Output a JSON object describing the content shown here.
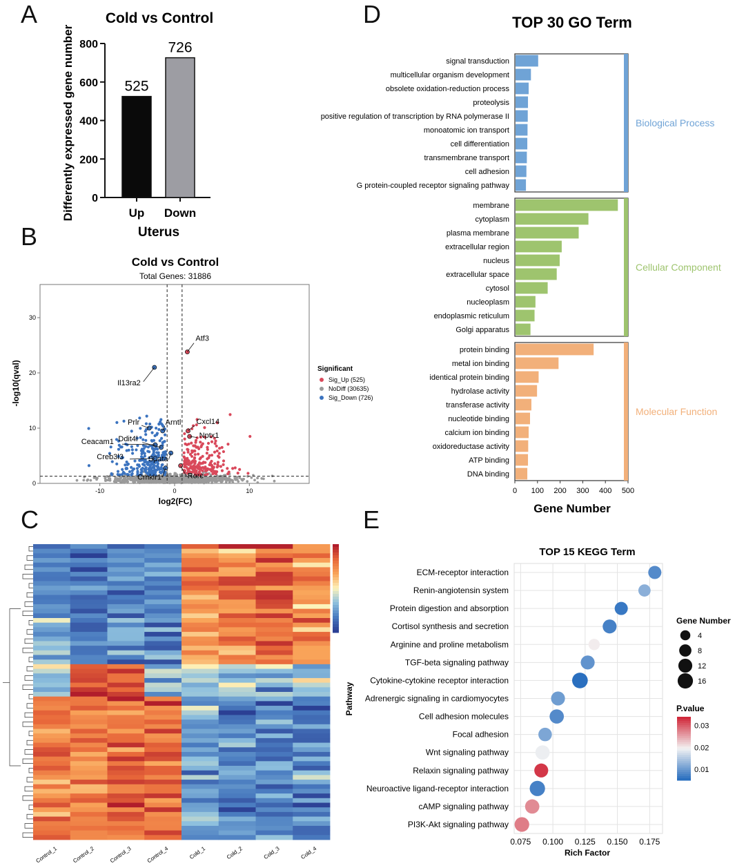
{
  "panel_letters": [
    "A",
    "B",
    "C",
    "D",
    "E"
  ],
  "chart_data": [
    {
      "id": "A",
      "type": "bar",
      "title": "Cold vs Control",
      "xlabel": "Uterus",
      "ylabel": "Differently expressed gene number",
      "categories": [
        "Up",
        "Down"
      ],
      "values": [
        525,
        726
      ],
      "value_labels": [
        "525",
        "726"
      ],
      "colors": [
        "#0a0a0a",
        "#9d9da3"
      ],
      "ylim": [
        0,
        800
      ],
      "yticks": [
        0,
        200,
        400,
        600,
        800
      ],
      "ytick_labels": [
        "0",
        "200",
        "400",
        "600",
        "800"
      ]
    },
    {
      "id": "B",
      "type": "scatter",
      "title": "Cold vs Control",
      "subtitle": "Total Genes: 31886",
      "xlabel": "log2(FC)",
      "ylabel": "-log10(qval)",
      "xlim": [
        -18,
        18
      ],
      "ylim": [
        0,
        36
      ],
      "xticks": [
        -10,
        0,
        10
      ],
      "xtick_labels": [
        "-10",
        "0",
        "10"
      ],
      "yticks": [
        0,
        10,
        20,
        30
      ],
      "ytick_labels": [
        "0",
        "10",
        "20",
        "30"
      ],
      "thresholds": {
        "fc": [
          -1,
          1
        ],
        "q": 1.3
      },
      "legend": {
        "title": "Significant",
        "entries": [
          {
            "label": "Sig_Up (525)",
            "color": "#d9495b"
          },
          {
            "label": "NoDiff (30635)",
            "color": "#9a9a9a"
          },
          {
            "label": "Sig_Down (726)",
            "color": "#3b73bf"
          }
        ]
      },
      "genes": [
        {
          "name": "Atf3",
          "x": 1.7,
          "y": 23.8
        },
        {
          "name": "Il13ra2",
          "x": -2.7,
          "y": 21.0
        },
        {
          "name": "Prlr",
          "x": -3.4,
          "y": 10.0
        },
        {
          "name": "Arntl",
          "x": -1.6,
          "y": 9.5
        },
        {
          "name": "Cxcl14",
          "x": 1.8,
          "y": 9.5
        },
        {
          "name": "Nptx1",
          "x": 2.0,
          "y": 8.5
        },
        {
          "name": "Ceacam1",
          "x": -2.6,
          "y": 7.0
        },
        {
          "name": "Ddit4l",
          "x": -1.8,
          "y": 6.5
        },
        {
          "name": "Spata",
          "x": -0.5,
          "y": 5.5
        },
        {
          "name": "Creb3l3",
          "x": -2.6,
          "y": 4.5
        },
        {
          "name": "Cmklr1",
          "x": -1.2,
          "y": 2.8
        },
        {
          "name": "Rorc",
          "x": 0.8,
          "y": 3.2
        }
      ]
    },
    {
      "id": "C",
      "type": "heatmap",
      "columns": [
        "Control_1",
        "Control_2",
        "Control_3",
        "Control_4",
        "Cold_1",
        "Cold_2",
        "Cold_3",
        "Cold_4"
      ],
      "colorscale": [
        "#2b3f94",
        "#4a7cc0",
        "#8fc1de",
        "#fdf3bb",
        "#f9a55a",
        "#e8683a",
        "#b11d2b"
      ]
    },
    {
      "id": "D",
      "type": "bar",
      "title": "TOP 30 GO Term",
      "xlabel": "Gene Number",
      "xlim": [
        0,
        500
      ],
      "xticks": [
        0,
        100,
        200,
        300,
        400,
        500
      ],
      "xtick_labels": [
        "0",
        "100",
        "200",
        "300",
        "400",
        "500"
      ],
      "groups": [
        {
          "name": "Biological Process",
          "color": "#6fa3d6",
          "terms": [
            "signal transduction",
            "multicellular organism development",
            "obsolete oxidation-reduction process",
            "proteolysis",
            "positive regulation of transcription by RNA polymerase II",
            "monoatomic ion transport",
            "cell differentiation",
            "transmembrane transport",
            "cell adhesion",
            "G protein-coupled receptor signaling pathway"
          ],
          "values": [
            100,
            68,
            58,
            55,
            54,
            53,
            52,
            50,
            48,
            46
          ]
        },
        {
          "name": "Cellular Component",
          "color": "#9ec46e",
          "terms": [
            "membrane",
            "cytoplasm",
            "plasma membrane",
            "extracellular region",
            "nucleus",
            "extracellular space",
            "cytosol",
            "nucleoplasm",
            "endoplasmic reticulum",
            "Golgi apparatus"
          ],
          "values": [
            452,
            322,
            279,
            204,
            195,
            182,
            142,
            88,
            84,
            66
          ]
        },
        {
          "name": "Molecular Function",
          "color": "#f2b07a",
          "terms": [
            "protein binding",
            "metal ion binding",
            "identical protein binding",
            "hydrolase activity",
            "transferase activity",
            "nucleotide binding",
            "calcium ion binding",
            "oxidoreductase activity",
            "ATP binding",
            "DNA binding"
          ],
          "values": [
            345,
            190,
            102,
            95,
            70,
            64,
            58,
            56,
            55,
            52
          ]
        }
      ]
    },
    {
      "id": "E",
      "type": "scatter",
      "title": "TOP 15 KEGG Term",
      "xlabel": "Rich Factor",
      "ylabel": "Pathway",
      "xlim": [
        0.07,
        0.185
      ],
      "xticks": [
        0.075,
        0.1,
        0.125,
        0.15,
        0.175
      ],
      "xtick_labels": [
        "0.075",
        "0.100",
        "0.125",
        "0.150",
        "0.175"
      ],
      "pathways": [
        {
          "name": "ECM-receptor interaction",
          "rich": 0.179,
          "genes": 10,
          "p": 0.008
        },
        {
          "name": "Renin-angiotensin system",
          "rich": 0.171,
          "genes": 8,
          "p": 0.012
        },
        {
          "name": "Protein digestion and absorption",
          "rich": 0.153,
          "genes": 10,
          "p": 0.006
        },
        {
          "name": "Cortisol synthesis and secretion",
          "rich": 0.144,
          "genes": 12,
          "p": 0.007
        },
        {
          "name": "Arginine and proline metabolism",
          "rich": 0.132,
          "genes": 6,
          "p": 0.02
        },
        {
          "name": "TGF-beta signaling pathway",
          "rich": 0.127,
          "genes": 12,
          "p": 0.009
        },
        {
          "name": "Cytokine-cytokine receptor interaction",
          "rich": 0.121,
          "genes": 17,
          "p": 0.005
        },
        {
          "name": "Adrenergic signaling in cardiomyocytes",
          "rich": 0.104,
          "genes": 12,
          "p": 0.01
        },
        {
          "name": "Cell adhesion molecules",
          "rich": 0.103,
          "genes": 13,
          "p": 0.008
        },
        {
          "name": "Focal adhesion",
          "rich": 0.094,
          "genes": 11,
          "p": 0.011
        },
        {
          "name": "Wnt signaling pathway",
          "rich": 0.092,
          "genes": 13,
          "p": 0.019
        },
        {
          "name": "Relaxin signaling pathway",
          "rich": 0.091,
          "genes": 12,
          "p": 0.033
        },
        {
          "name": "Neuroactive ligand-receptor interaction",
          "rich": 0.088,
          "genes": 16,
          "p": 0.007
        },
        {
          "name": "cAMP signaling pathway",
          "rich": 0.084,
          "genes": 13,
          "p": 0.027
        },
        {
          "name": "PI3K-Akt signaling pathway",
          "rich": 0.076,
          "genes": 14,
          "p": 0.028
        }
      ],
      "size_legend": {
        "title": "Gene Number",
        "values": [
          4,
          8,
          12,
          16
        ],
        "labels": [
          "4",
          "8",
          "12",
          "16"
        ]
      },
      "color_legend": {
        "title": "P.value",
        "ticks": [
          0.03,
          0.02,
          0.01
        ],
        "labels": [
          "0.03",
          "0.02",
          "0.01"
        ],
        "colors": [
          "#d1293b",
          "#f3f3f3",
          "#2a6fbf"
        ]
      }
    }
  ]
}
